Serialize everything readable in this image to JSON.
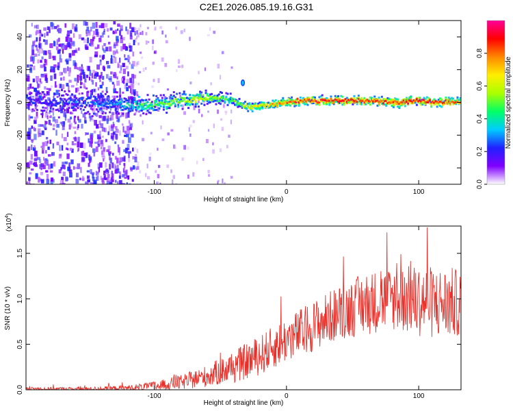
{
  "title": "C2E1.2026.085.19.16.G31",
  "colors": {
    "snr_line": "#e8302a",
    "frame": "#000000",
    "scatter_purple": "#6a1fd6"
  },
  "chart_data": [
    {
      "type": "heatmap",
      "xlabel": "Height of straight line (km)",
      "ylabel": "Frequency (Hz)",
      "xlim": [
        -197,
        132
      ],
      "ylim": [
        -50,
        50
      ],
      "x_ticks": [
        -100,
        0,
        100
      ],
      "x_tick_labels": [
        "-100",
        "0",
        "100"
      ],
      "y_ticks": [
        -40,
        -20,
        0,
        20,
        40
      ],
      "y_tick_labels": [
        "-40",
        "-20",
        "0",
        "20",
        "40"
      ],
      "colorbar": {
        "label": "Normalized spectral amplitude",
        "range": [
          0,
          1
        ],
        "ticks": [
          0.0,
          0.2,
          0.4,
          0.6,
          0.8
        ],
        "tick_labels": [
          "0.0",
          "0.2",
          "0.4",
          "0.6",
          "0.8"
        ],
        "colormap": [
          "#ffffff",
          "#8000ff",
          "#2020ff",
          "#00ccff",
          "#00ff66",
          "#aaff00",
          "#ffee00",
          "#ff8800",
          "#ff0000",
          "#ff0099"
        ]
      },
      "ridge": {
        "description": "frequency trace centred near 0 Hz",
        "x": [
          -197,
          -160,
          -130,
          -110,
          -90,
          -70,
          -55,
          -45,
          -38,
          -30,
          -20,
          -10,
          0,
          10,
          20,
          40,
          60,
          80,
          100,
          120,
          132
        ],
        "y": [
          1,
          0,
          -1,
          -2,
          0,
          2,
          3,
          2,
          0,
          -3,
          -2,
          -1,
          0,
          1,
          1,
          1,
          1,
          0,
          1,
          0,
          0
        ],
        "amplitude": [
          0.2,
          0.25,
          0.3,
          0.45,
          0.5,
          0.6,
          0.55,
          0.45,
          0.5,
          0.6,
          0.65,
          0.75,
          0.8,
          0.85,
          0.85,
          0.9,
          0.85,
          0.85,
          0.9,
          0.85,
          0.8
        ],
        "width_hz": [
          10,
          9,
          8,
          6,
          6,
          5,
          5,
          4,
          4,
          3,
          3,
          3,
          3,
          3,
          3,
          3,
          3,
          3,
          3,
          3,
          3
        ]
      },
      "noise_region": {
        "x_range": [
          -197,
          -115
        ],
        "y_range": [
          -50,
          50
        ],
        "amplitude_range": [
          0.05,
          0.25
        ]
      },
      "sparse_region": {
        "x_range": [
          -115,
          -40
        ],
        "y_range": [
          -50,
          50
        ],
        "amplitude_range": [
          0.0,
          0.15
        ]
      },
      "outlier_blob": {
        "x": -33,
        "y": 12,
        "amplitude": 0.25
      }
    },
    {
      "type": "line",
      "xlabel": "Height of straight line (km)",
      "ylabel": "SNR (10 * v/v)",
      "y_scale_label": "(x10",
      "y_scale_exponent": "4",
      "y_scale_close": ")",
      "xlim": [
        -197,
        132
      ],
      "ylim": [
        0,
        1.8
      ],
      "x_ticks": [
        -100,
        0,
        100
      ],
      "x_tick_labels": [
        "-100",
        "0",
        "100"
      ],
      "y_ticks": [
        0.0,
        0.5,
        1.0,
        1.5
      ],
      "y_tick_labels": [
        "0.0",
        "0.5",
        "1.0",
        "1.5"
      ],
      "series": [
        {
          "name": "SNR",
          "color": "#e8302a",
          "envelope_x": [
            -197,
            -150,
            -120,
            -100,
            -80,
            -60,
            -40,
            -20,
            0,
            20,
            40,
            60,
            80,
            100,
            115,
            125,
            132
          ],
          "envelope_mean": [
            0.01,
            0.01,
            0.02,
            0.04,
            0.08,
            0.15,
            0.25,
            0.38,
            0.55,
            0.7,
            0.85,
            0.95,
            1.0,
            0.98,
            0.95,
            0.95,
            0.95
          ],
          "envelope_spread": [
            0.02,
            0.02,
            0.03,
            0.05,
            0.08,
            0.12,
            0.18,
            0.22,
            0.25,
            0.28,
            0.3,
            0.35,
            0.35,
            0.4,
            0.4,
            0.4,
            0.35
          ]
        }
      ]
    }
  ]
}
